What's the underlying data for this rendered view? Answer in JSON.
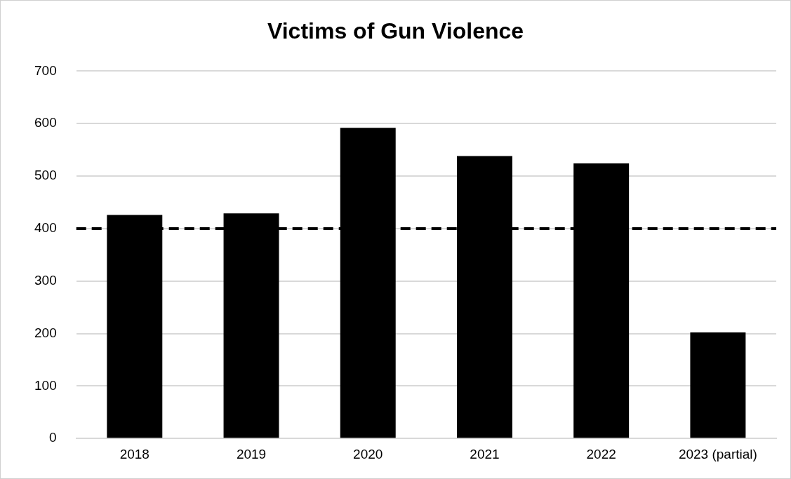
{
  "chart_data": {
    "type": "bar",
    "title": "Victims of Gun Violence",
    "categories": [
      "2018",
      "2019",
      "2020",
      "2021",
      "2022",
      "2023 (partial)"
    ],
    "values": [
      426,
      429,
      592,
      538,
      524,
      202
    ],
    "color": "#000000",
    "ylim": [
      0,
      700
    ],
    "yticks": [
      0,
      100,
      200,
      300,
      400,
      500,
      600,
      700
    ],
    "grid": "y",
    "legend": false,
    "ref_lines": [
      {
        "axis": "y",
        "value": 400,
        "color": "#000000",
        "line_style": "dashed"
      }
    ]
  }
}
